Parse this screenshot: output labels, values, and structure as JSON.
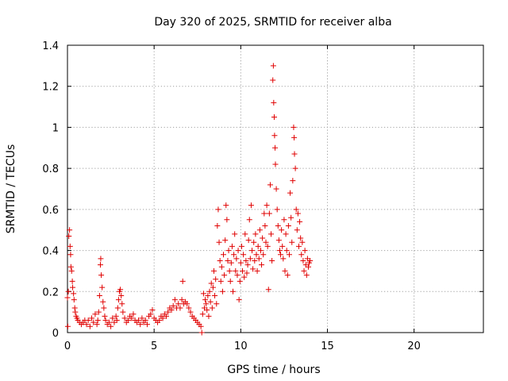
{
  "chart_data": {
    "type": "scatter",
    "title": "Day 320 of 2025, SRMTID for receiver alba",
    "xlabel": "GPS time / hours",
    "ylabel": "SRMTID / TECUs",
    "xlim": [
      0,
      24
    ],
    "ylim": [
      0,
      1.4
    ],
    "x_ticks": [
      0,
      5,
      10,
      15,
      20
    ],
    "x_tick_labels": [
      "0",
      "5",
      "10",
      "15",
      "20"
    ],
    "y_ticks": [
      0,
      0.2,
      0.4,
      0.6,
      0.8,
      1.0,
      1.2,
      1.4
    ],
    "y_tick_labels": [
      "0",
      "0.2",
      "0.4",
      "0.6",
      "0.8",
      "1",
      "1.2",
      "1.4"
    ],
    "grid": true,
    "marker": "plus",
    "color": "#e00000",
    "series": [
      {
        "name": "SRMTID",
        "points": [
          [
            0.0,
            0.17
          ],
          [
            0.02,
            0.03
          ],
          [
            0.05,
            0.2
          ],
          [
            0.08,
            0.47
          ],
          [
            0.12,
            0.5
          ],
          [
            0.15,
            0.42
          ],
          [
            0.18,
            0.38
          ],
          [
            0.2,
            0.32
          ],
          [
            0.24,
            0.3
          ],
          [
            0.28,
            0.25
          ],
          [
            0.3,
            0.22
          ],
          [
            0.35,
            0.19
          ],
          [
            0.38,
            0.16
          ],
          [
            0.42,
            0.12
          ],
          [
            0.45,
            0.1
          ],
          [
            0.5,
            0.08
          ],
          [
            0.55,
            0.07
          ],
          [
            0.6,
            0.06
          ],
          [
            0.7,
            0.05
          ],
          [
            0.8,
            0.04
          ],
          [
            0.9,
            0.05
          ],
          [
            1.0,
            0.06
          ],
          [
            1.1,
            0.04
          ],
          [
            1.2,
            0.06
          ],
          [
            1.3,
            0.03
          ],
          [
            1.4,
            0.07
          ],
          [
            1.5,
            0.05
          ],
          [
            1.6,
            0.09
          ],
          [
            1.7,
            0.04
          ],
          [
            1.75,
            0.06
          ],
          [
            1.8,
            0.1
          ],
          [
            1.85,
            0.18
          ],
          [
            1.9,
            0.33
          ],
          [
            1.92,
            0.36
          ],
          [
            1.95,
            0.28
          ],
          [
            2.0,
            0.22
          ],
          [
            2.05,
            0.15
          ],
          [
            2.1,
            0.12
          ],
          [
            2.15,
            0.08
          ],
          [
            2.2,
            0.06
          ],
          [
            2.3,
            0.04
          ],
          [
            2.4,
            0.05
          ],
          [
            2.5,
            0.03
          ],
          [
            2.6,
            0.07
          ],
          [
            2.7,
            0.05
          ],
          [
            2.8,
            0.08
          ],
          [
            2.85,
            0.06
          ],
          [
            2.9,
            0.12
          ],
          [
            2.95,
            0.16
          ],
          [
            3.0,
            0.2
          ],
          [
            3.05,
            0.21
          ],
          [
            3.1,
            0.18
          ],
          [
            3.15,
            0.14
          ],
          [
            3.2,
            0.1
          ],
          [
            3.3,
            0.07
          ],
          [
            3.4,
            0.05
          ],
          [
            3.5,
            0.06
          ],
          [
            3.6,
            0.08
          ],
          [
            3.7,
            0.07
          ],
          [
            3.8,
            0.09
          ],
          [
            3.9,
            0.06
          ],
          [
            4.0,
            0.05
          ],
          [
            4.1,
            0.06
          ],
          [
            4.2,
            0.04
          ],
          [
            4.3,
            0.07
          ],
          [
            4.4,
            0.05
          ],
          [
            4.5,
            0.06
          ],
          [
            4.6,
            0.04
          ],
          [
            4.7,
            0.08
          ],
          [
            4.8,
            0.09
          ],
          [
            4.9,
            0.11
          ],
          [
            5.0,
            0.07
          ],
          [
            5.1,
            0.06
          ],
          [
            5.2,
            0.05
          ],
          [
            5.3,
            0.06
          ],
          [
            5.4,
            0.08
          ],
          [
            5.5,
            0.07
          ],
          [
            5.6,
            0.09
          ],
          [
            5.7,
            0.08
          ],
          [
            5.8,
            0.1
          ],
          [
            5.9,
            0.12
          ],
          [
            6.0,
            0.11
          ],
          [
            6.1,
            0.13
          ],
          [
            6.2,
            0.16
          ],
          [
            6.3,
            0.12
          ],
          [
            6.4,
            0.14
          ],
          [
            6.5,
            0.12
          ],
          [
            6.6,
            0.16
          ],
          [
            6.65,
            0.25
          ],
          [
            6.7,
            0.14
          ],
          [
            6.8,
            0.15
          ],
          [
            6.9,
            0.14
          ],
          [
            7.0,
            0.12
          ],
          [
            7.1,
            0.1
          ],
          [
            7.2,
            0.08
          ],
          [
            7.3,
            0.07
          ],
          [
            7.4,
            0.06
          ],
          [
            7.5,
            0.05
          ],
          [
            7.6,
            0.04
          ],
          [
            7.7,
            0.03
          ],
          [
            7.75,
            0.0
          ],
          [
            7.8,
            0.09
          ],
          [
            7.85,
            0.19
          ],
          [
            7.9,
            0.12
          ],
          [
            7.95,
            0.16
          ],
          [
            8.0,
            0.14
          ],
          [
            8.05,
            0.11
          ],
          [
            8.1,
            0.18
          ],
          [
            8.15,
            0.08
          ],
          [
            8.2,
            0.2
          ],
          [
            8.25,
            0.15
          ],
          [
            8.3,
            0.24
          ],
          [
            8.35,
            0.12
          ],
          [
            8.4,
            0.22
          ],
          [
            8.45,
            0.3
          ],
          [
            8.5,
            0.18
          ],
          [
            8.55,
            0.26
          ],
          [
            8.6,
            0.14
          ],
          [
            8.65,
            0.52
          ],
          [
            8.7,
            0.6
          ],
          [
            8.75,
            0.44
          ],
          [
            8.8,
            0.35
          ],
          [
            8.85,
            0.25
          ],
          [
            8.9,
            0.32
          ],
          [
            8.95,
            0.2
          ],
          [
            9.0,
            0.38
          ],
          [
            9.05,
            0.28
          ],
          [
            9.1,
            0.45
          ],
          [
            9.15,
            0.62
          ],
          [
            9.2,
            0.55
          ],
          [
            9.25,
            0.35
          ],
          [
            9.3,
            0.4
          ],
          [
            9.35,
            0.3
          ],
          [
            9.4,
            0.25
          ],
          [
            9.45,
            0.34
          ],
          [
            9.5,
            0.42
          ],
          [
            9.55,
            0.2
          ],
          [
            9.6,
            0.38
          ],
          [
            9.65,
            0.48
          ],
          [
            9.7,
            0.3
          ],
          [
            9.75,
            0.36
          ],
          [
            9.8,
            0.28
          ],
          [
            9.85,
            0.4
          ],
          [
            9.9,
            0.16
          ],
          [
            9.95,
            0.25
          ],
          [
            10.0,
            0.34
          ],
          [
            10.05,
            0.42
          ],
          [
            10.1,
            0.3
          ],
          [
            10.15,
            0.38
          ],
          [
            10.2,
            0.27
          ],
          [
            10.25,
            0.48
          ],
          [
            10.3,
            0.35
          ],
          [
            10.35,
            0.29
          ],
          [
            10.4,
            0.33
          ],
          [
            10.45,
            0.45
          ],
          [
            10.5,
            0.55
          ],
          [
            10.55,
            0.36
          ],
          [
            10.6,
            0.62
          ],
          [
            10.65,
            0.4
          ],
          [
            10.7,
            0.31
          ],
          [
            10.75,
            0.44
          ],
          [
            10.8,
            0.35
          ],
          [
            10.85,
            0.48
          ],
          [
            10.9,
            0.38
          ],
          [
            10.95,
            0.3
          ],
          [
            11.0,
            0.42
          ],
          [
            11.05,
            0.36
          ],
          [
            11.1,
            0.5
          ],
          [
            11.15,
            0.4
          ],
          [
            11.2,
            0.33
          ],
          [
            11.25,
            0.46
          ],
          [
            11.3,
            0.38
          ],
          [
            11.35,
            0.58
          ],
          [
            11.4,
            0.52
          ],
          [
            11.45,
            0.44
          ],
          [
            11.5,
            0.62
          ],
          [
            11.55,
            0.42
          ],
          [
            11.6,
            0.21
          ],
          [
            11.65,
            0.58
          ],
          [
            11.7,
            0.72
          ],
          [
            11.75,
            0.48
          ],
          [
            11.8,
            0.35
          ],
          [
            11.85,
            1.23
          ],
          [
            11.88,
            1.3
          ],
          [
            11.9,
            1.12
          ],
          [
            11.93,
            1.05
          ],
          [
            11.95,
            0.96
          ],
          [
            11.98,
            0.9
          ],
          [
            12.0,
            0.82
          ],
          [
            12.05,
            0.7
          ],
          [
            12.1,
            0.6
          ],
          [
            12.15,
            0.52
          ],
          [
            12.2,
            0.45
          ],
          [
            12.25,
            0.4
          ],
          [
            12.3,
            0.38
          ],
          [
            12.35,
            0.5
          ],
          [
            12.4,
            0.42
          ],
          [
            12.45,
            0.36
          ],
          [
            12.5,
            0.55
          ],
          [
            12.55,
            0.3
          ],
          [
            12.6,
            0.48
          ],
          [
            12.65,
            0.4
          ],
          [
            12.7,
            0.28
          ],
          [
            12.75,
            0.52
          ],
          [
            12.8,
            0.38
          ],
          [
            12.85,
            0.68
          ],
          [
            12.9,
            0.56
          ],
          [
            12.95,
            0.44
          ],
          [
            13.0,
            0.74
          ],
          [
            13.05,
            1.0
          ],
          [
            13.08,
            0.95
          ],
          [
            13.1,
            0.87
          ],
          [
            13.15,
            0.8
          ],
          [
            13.2,
            0.6
          ],
          [
            13.25,
            0.5
          ],
          [
            13.3,
            0.58
          ],
          [
            13.35,
            0.42
          ],
          [
            13.4,
            0.54
          ],
          [
            13.45,
            0.46
          ],
          [
            13.5,
            0.38
          ],
          [
            13.55,
            0.44
          ],
          [
            13.6,
            0.35
          ],
          [
            13.65,
            0.3
          ],
          [
            13.7,
            0.4
          ],
          [
            13.75,
            0.33
          ],
          [
            13.8,
            0.28
          ],
          [
            13.85,
            0.36
          ],
          [
            13.9,
            0.32
          ],
          [
            13.95,
            0.34
          ],
          [
            14.0,
            0.35
          ]
        ]
      }
    ]
  }
}
